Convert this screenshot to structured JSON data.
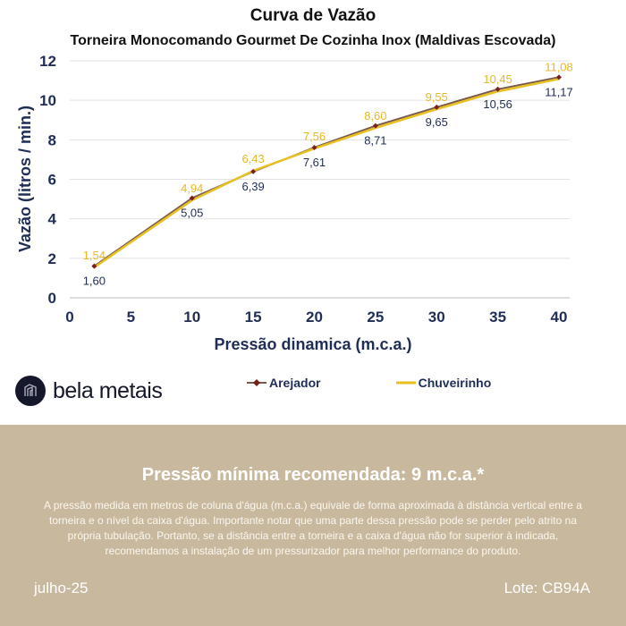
{
  "chart_data": {
    "type": "line",
    "title": "Curva de Vazão",
    "subtitle": "Torneira Monocomando Gourmet De Cozinha Inox (Maldivas Escovada)",
    "xlabel": "Pressão dinamica (m.c.a.)",
    "ylabel": "Vazão (litros / min.)",
    "xlim": [
      0,
      40
    ],
    "ylim": [
      0,
      12
    ],
    "xticks": [
      "0",
      "5",
      "10",
      "15",
      "20",
      "25",
      "30",
      "35",
      "40"
    ],
    "yticks": [
      "0",
      "2",
      "4",
      "6",
      "8",
      "10",
      "12"
    ],
    "grid": "horizontal",
    "legend_position": "bottom",
    "x": [
      2,
      10,
      15,
      20,
      25,
      30,
      35,
      40
    ],
    "series": [
      {
        "name": "Arejador",
        "color": "#7a5a4a",
        "values": [
          1.6,
          5.05,
          6.39,
          7.61,
          8.71,
          9.65,
          10.56,
          11.17
        ],
        "labels": [
          "1,60",
          "5,05",
          "6,39",
          "7,61",
          "8,71",
          "9,65",
          "10,56",
          "11,17"
        ]
      },
      {
        "name": "Chuveirinho",
        "color": "#e8c020",
        "values": [
          1.54,
          4.94,
          6.43,
          7.56,
          8.6,
          9.55,
          10.45,
          11.08
        ],
        "labels": [
          "1,54",
          "4,94",
          "6,43",
          "7,56",
          "8,60",
          "9,55",
          "10,45",
          "11,08"
        ]
      }
    ]
  },
  "brand": {
    "name": "bela metais"
  },
  "footer": {
    "headline": "Pressão mínima recomendada: 9 m.c.a.*",
    "note": "A pressão medida em metros de coluna d'água (m.c.a.) equivale de forma aproximada à distância vertical entre a torneira e o nível da caixa d'água. Importante notar que uma parte dessa pressão pode se perder pelo atrito na própria tubulação. Portanto, se a distância entre a torneira e a caixa d'água não for superior à indicada, recomendamos a instalação de um pressurizador para melhor performance do produto.",
    "date": "julho-25",
    "lot": "Lote: CB94A"
  },
  "colors": {
    "band": "#c8b89d",
    "axis_text": "#1f2d57",
    "label_gold": "#e8b824"
  }
}
